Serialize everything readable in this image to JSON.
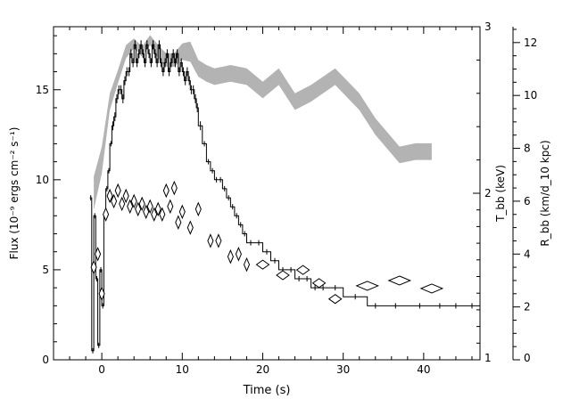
{
  "chart_data": {
    "type": "line",
    "title": "",
    "xlabel": "Time (s)",
    "ylabel_left": "Flux (10⁻⁹ ergs cm⁻² s⁻¹)",
    "ylabel_right_inner": "T_bb (keV)",
    "ylabel_right_outer": "R_bb (km/d_10 kpc)",
    "xlim": [
      -6,
      47
    ],
    "ylim_left": [
      0,
      18.5
    ],
    "ylim_right_inner": [
      1,
      3
    ],
    "ylim_right_outer": [
      0,
      12.6
    ],
    "x_ticks": [
      "0",
      "10",
      "20",
      "30",
      "40"
    ],
    "y_left_ticks": [
      "0",
      "5",
      "10",
      "15"
    ],
    "y_right_inner_ticks": [
      "1",
      "2",
      "3"
    ],
    "y_right_outer_ticks": [
      "0",
      "2",
      "4",
      "6",
      "8",
      "10",
      "12"
    ],
    "grid": false,
    "legend": "none",
    "series": [
      {
        "style": "histogram",
        "axis": "left",
        "color": "#000000",
        "x": [
          -1.5,
          -1.25,
          -1.0,
          -0.75,
          -0.5,
          -0.25,
          0.0,
          0.25,
          0.5,
          0.75,
          1.0,
          1.25,
          1.5,
          1.75,
          2.0,
          2.25,
          2.5,
          2.75,
          3.0,
          3.25,
          3.5,
          3.75,
          4.0,
          4.25,
          4.5,
          4.75,
          5.0,
          5.25,
          5.5,
          5.75,
          6.0,
          6.25,
          6.5,
          6.75,
          7.0,
          7.25,
          7.5,
          7.75,
          8.0,
          8.25,
          8.5,
          8.75,
          9.0,
          9.25,
          9.5,
          9.75,
          10.0,
          10.25,
          10.5,
          10.75,
          11.0,
          11.25,
          11.5,
          11.75,
          12.0,
          12.5,
          13.0,
          13.5,
          14.0,
          14.5,
          15.0,
          15.5,
          16.0,
          16.5,
          17.0,
          17.5,
          18.0,
          19.0,
          20.0,
          21.0,
          22.0,
          23.0,
          24.0,
          25.0,
          26.0,
          27.0,
          28.0,
          30.0,
          33.0,
          35.0,
          38.0,
          41.0,
          43.0,
          45.0
        ],
        "values": [
          9.0,
          0.5,
          8.0,
          4.5,
          0.8,
          5.0,
          3.0,
          8.0,
          9.5,
          10.5,
          12.0,
          13.0,
          13.5,
          14.5,
          15.0,
          15.0,
          14.5,
          15.5,
          16.0,
          16.0,
          17.0,
          16.5,
          17.5,
          16.5,
          17.0,
          17.5,
          17.0,
          16.5,
          17.5,
          17.0,
          16.5,
          17.5,
          17.0,
          16.5,
          17.5,
          16.5,
          16.0,
          16.5,
          17.0,
          16.0,
          16.5,
          17.0,
          16.5,
          17.0,
          16.0,
          16.5,
          16.0,
          15.5,
          16.0,
          15.5,
          15.0,
          15.0,
          14.5,
          14.0,
          13.0,
          12.0,
          11.0,
          10.5,
          10.0,
          10.0,
          9.5,
          9.0,
          8.5,
          8.0,
          7.5,
          7.0,
          6.5,
          6.5,
          6.0,
          5.5,
          5.0,
          5.0,
          4.5,
          4.5,
          4.0,
          4.0,
          4.0,
          3.5,
          3.0,
          3.0,
          3.0,
          3.0,
          3.0,
          3.0
        ]
      },
      {
        "style": "band",
        "axis": "right_inner",
        "color": "#b3b3b3",
        "x": [
          -1.0,
          0.0,
          1.0,
          2.0,
          3.0,
          4.0,
          5.0,
          6.0,
          7.0,
          8.0,
          9.0,
          10.0,
          11.0,
          12.0,
          13.0,
          14.0,
          16.0,
          18.0,
          20.0,
          22.0,
          24.0,
          26.0,
          29.0,
          32.0,
          34.0,
          37.0,
          39.0,
          41.0
        ],
        "values": [
          2.0,
          2.2,
          2.55,
          2.7,
          2.85,
          2.9,
          2.85,
          2.92,
          2.85,
          2.8,
          2.8,
          2.85,
          2.85,
          2.75,
          2.72,
          2.7,
          2.72,
          2.7,
          2.62,
          2.7,
          2.55,
          2.6,
          2.7,
          2.55,
          2.4,
          2.23,
          2.25,
          2.25
        ],
        "band_halfwidth": [
          0.1,
          0.08,
          0.05,
          0.04,
          0.04,
          0.03,
          0.03,
          0.03,
          0.04,
          0.04,
          0.04,
          0.05,
          0.06,
          0.05,
          0.05,
          0.05,
          0.05,
          0.05,
          0.05,
          0.05,
          0.05,
          0.05,
          0.05,
          0.05,
          0.05,
          0.05,
          0.05,
          0.05
        ]
      },
      {
        "style": "diamonds",
        "axis": "right_outer",
        "color": "#000000",
        "x": [
          -1.0,
          -0.5,
          0.0,
          0.5,
          1.0,
          1.5,
          2.0,
          2.5,
          3.0,
          3.5,
          4.0,
          4.5,
          5.0,
          5.5,
          6.0,
          6.5,
          7.0,
          7.5,
          8.0,
          8.5,
          9.0,
          9.5,
          10.0,
          11.0,
          12.0,
          13.5,
          14.5,
          16.0,
          17.0,
          18.0,
          20.0,
          22.5,
          25.0,
          27.0,
          29.0,
          33.0,
          37.0,
          41.0
        ],
        "values": [
          3.5,
          4.0,
          2.5,
          5.5,
          6.2,
          6.0,
          6.4,
          5.9,
          6.2,
          5.8,
          6.0,
          5.7,
          5.9,
          5.6,
          5.8,
          5.5,
          5.7,
          5.5,
          6.4,
          5.8,
          6.5,
          5.2,
          5.6,
          5.0,
          5.7,
          4.5,
          4.5,
          3.9,
          4.0,
          3.6,
          3.6,
          3.2,
          3.4,
          2.9,
          2.3,
          2.8,
          3.0,
          2.7
        ]
      }
    ]
  }
}
